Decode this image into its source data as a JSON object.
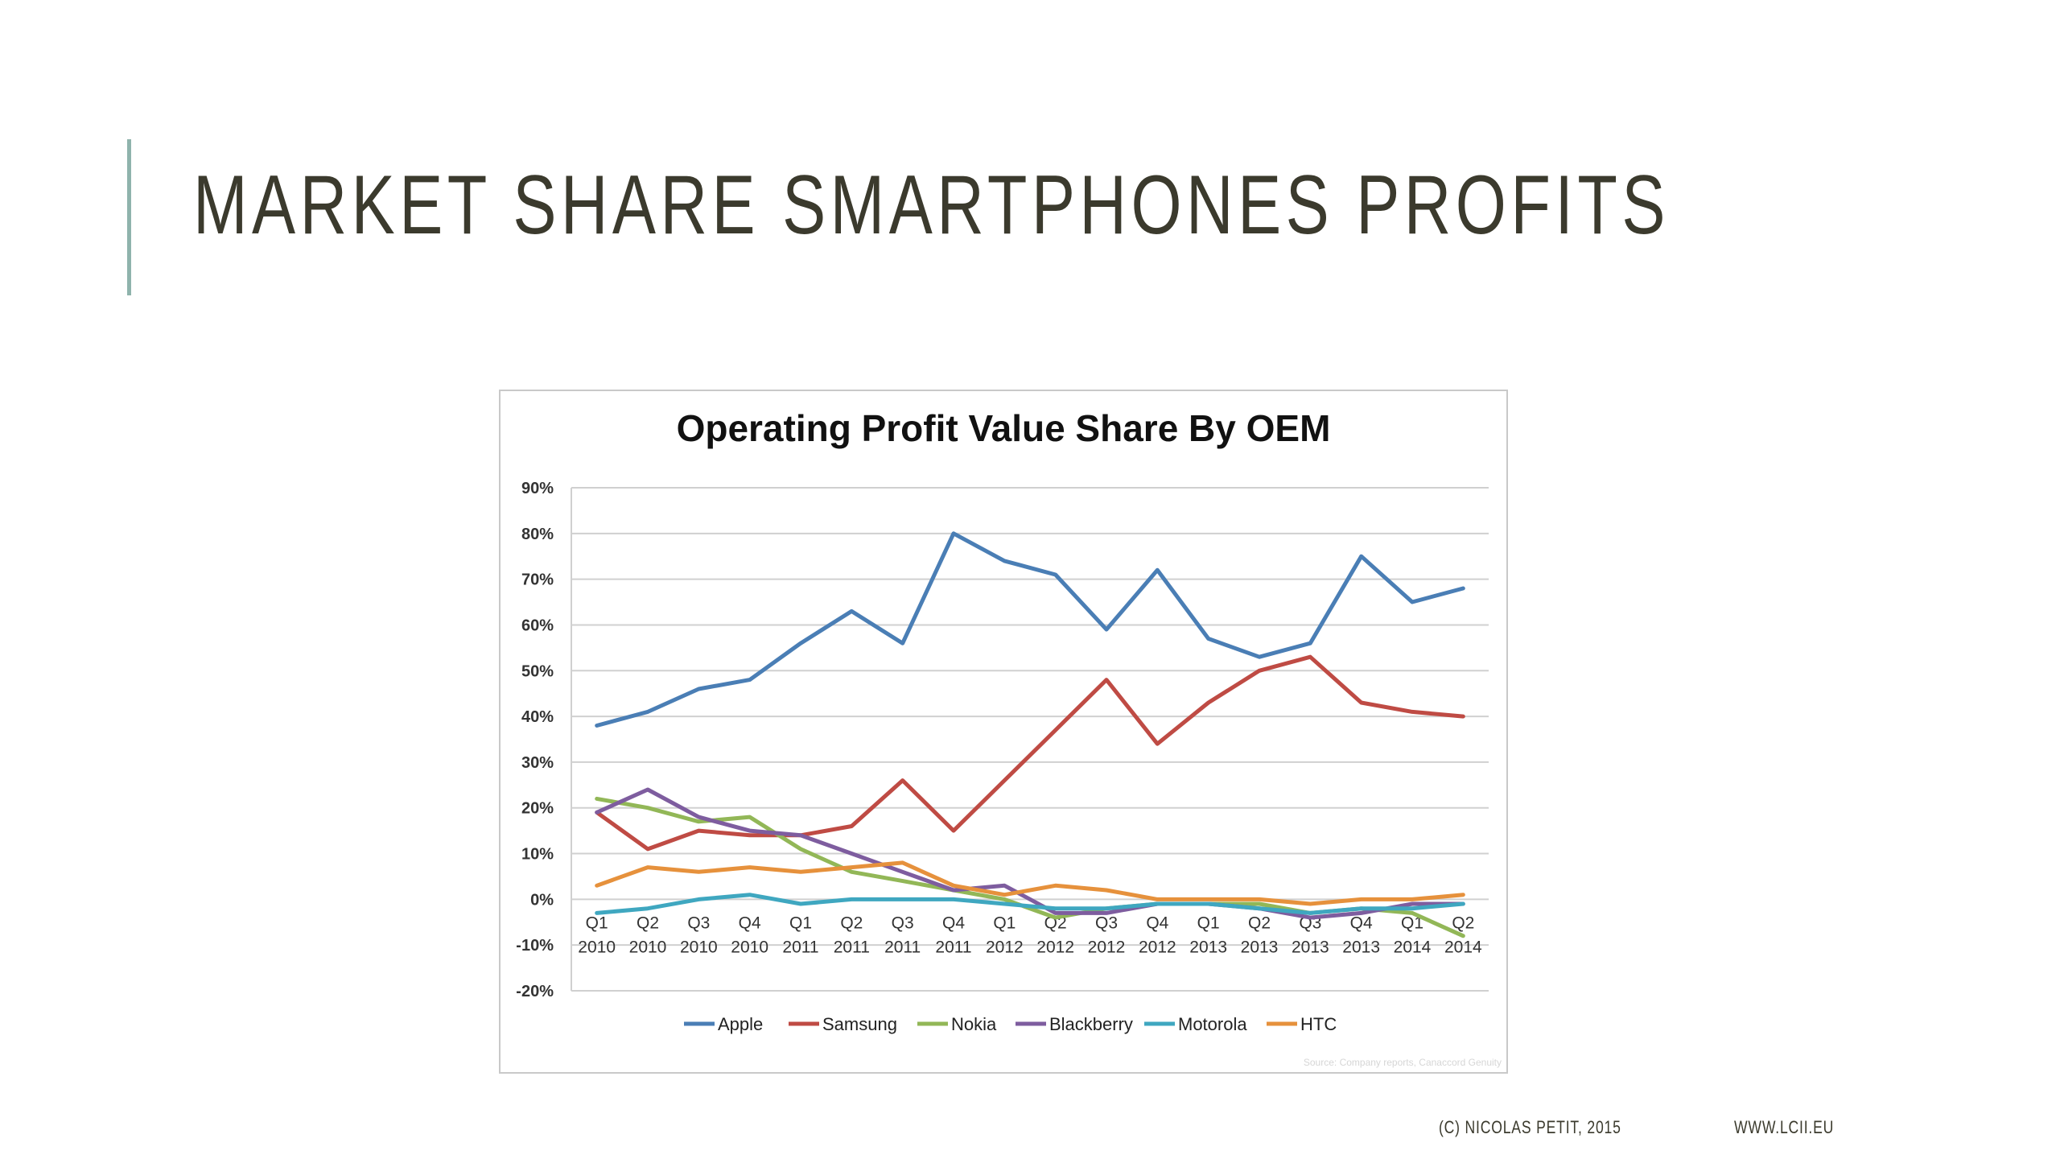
{
  "slide": {
    "title": "MARKET SHARE SMARTPHONES PROFITS",
    "footer_credit": "(C) NICOLAS PETIT, 2015",
    "footer_url": "WWW.LCII.EU",
    "accent_color": "#8fb3ac",
    "title_color": "#3b3a2d"
  },
  "chart_data": {
    "type": "line",
    "title": "Operating Profit Value Share By OEM",
    "xlabel": "",
    "ylabel": "",
    "ylim": [
      -20,
      90
    ],
    "yticks": [
      -20,
      -10,
      0,
      10,
      20,
      30,
      40,
      50,
      60,
      70,
      80,
      90
    ],
    "ytick_labels": [
      "-20%",
      "-10%",
      "0%",
      "10%",
      "20%",
      "30%",
      "40%",
      "50%",
      "60%",
      "70%",
      "80%",
      "90%"
    ],
    "categories": [
      [
        "Q1",
        "2010"
      ],
      [
        "Q2",
        "2010"
      ],
      [
        "Q3",
        "2010"
      ],
      [
        "Q4",
        "2010"
      ],
      [
        "Q1",
        "2011"
      ],
      [
        "Q2",
        "2011"
      ],
      [
        "Q3",
        "2011"
      ],
      [
        "Q4",
        "2011"
      ],
      [
        "Q1",
        "2012"
      ],
      [
        "Q2",
        "2012"
      ],
      [
        "Q3",
        "2012"
      ],
      [
        "Q4",
        "2012"
      ],
      [
        "Q1",
        "2013"
      ],
      [
        "Q2",
        "2013"
      ],
      [
        "Q3",
        "2013"
      ],
      [
        "Q4",
        "2013"
      ],
      [
        "Q1",
        "2014"
      ],
      [
        "Q2",
        "2014"
      ]
    ],
    "grid": true,
    "legend_position": "bottom",
    "series": [
      {
        "name": "Apple",
        "color": "#4a7eb5",
        "values": [
          38,
          41,
          46,
          48,
          56,
          63,
          56,
          80,
          74,
          71,
          59,
          72,
          57,
          53,
          56,
          75,
          65,
          68
        ]
      },
      {
        "name": "Samsung",
        "color": "#bf4b44",
        "values": [
          19,
          11,
          15,
          14,
          14,
          16,
          26,
          15,
          26,
          37,
          48,
          34,
          43,
          50,
          53,
          43,
          41,
          40
        ]
      },
      {
        "name": "Nokia",
        "color": "#92b757",
        "values": [
          22,
          20,
          17,
          18,
          11,
          6,
          4,
          2,
          0,
          -4,
          -2,
          -1,
          -1,
          -1,
          -3,
          -2,
          -3,
          -8
        ]
      },
      {
        "name": "Blackberry",
        "color": "#7e5d9f",
        "values": [
          19,
          24,
          18,
          15,
          14,
          10,
          6,
          2,
          3,
          -3,
          -3,
          -1,
          -1,
          -2,
          -4,
          -3,
          -1,
          -1
        ]
      },
      {
        "name": "Motorola",
        "color": "#3fa7c0",
        "values": [
          -3,
          -2,
          0,
          1,
          -1,
          0,
          0,
          0,
          -1,
          -2,
          -2,
          -1,
          -1,
          -2,
          -3,
          -2,
          -2,
          -1
        ]
      },
      {
        "name": "HTC",
        "color": "#e6913c",
        "values": [
          3,
          7,
          6,
          7,
          6,
          7,
          8,
          3,
          1,
          3,
          2,
          0,
          0,
          0,
          -1,
          0,
          0,
          1
        ]
      }
    ],
    "source_note": "Source: Company reports, Canaccord Genuity"
  }
}
